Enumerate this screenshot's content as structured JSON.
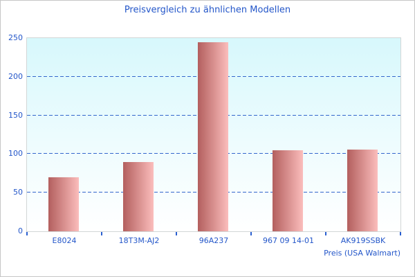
{
  "chart_data": {
    "type": "bar",
    "title": "Preisvergleich zu ähnlichen Modellen",
    "categories": [
      "E8024",
      "18T3M-AJ2",
      "96A237",
      "967 09 14-01",
      "AK919SSBK"
    ],
    "values": [
      70,
      90,
      245,
      105,
      106
    ],
    "xlabel": "Preis (USA Walmart)",
    "ylabel": "",
    "ylim": [
      0,
      250
    ],
    "yticks": [
      0,
      50,
      100,
      150,
      200,
      250
    ],
    "grid": "horizontal-dashed",
    "legend": "none"
  },
  "colors": {
    "title_text": "#2356c9",
    "axis_text": "#2356c9",
    "gridline": "#3366cc",
    "tick": "#2a5fd0",
    "bar_gradient_left": "#b35f5e",
    "bar_gradient_right": "#fbbdbc",
    "plot_bg_top": "#d7f8fc",
    "plot_bg_mid": "#eefcfe",
    "plot_bg_bottom": "#ffffff",
    "plot_border": "#d2d6d6",
    "outer_border": "#c6c6c6"
  }
}
